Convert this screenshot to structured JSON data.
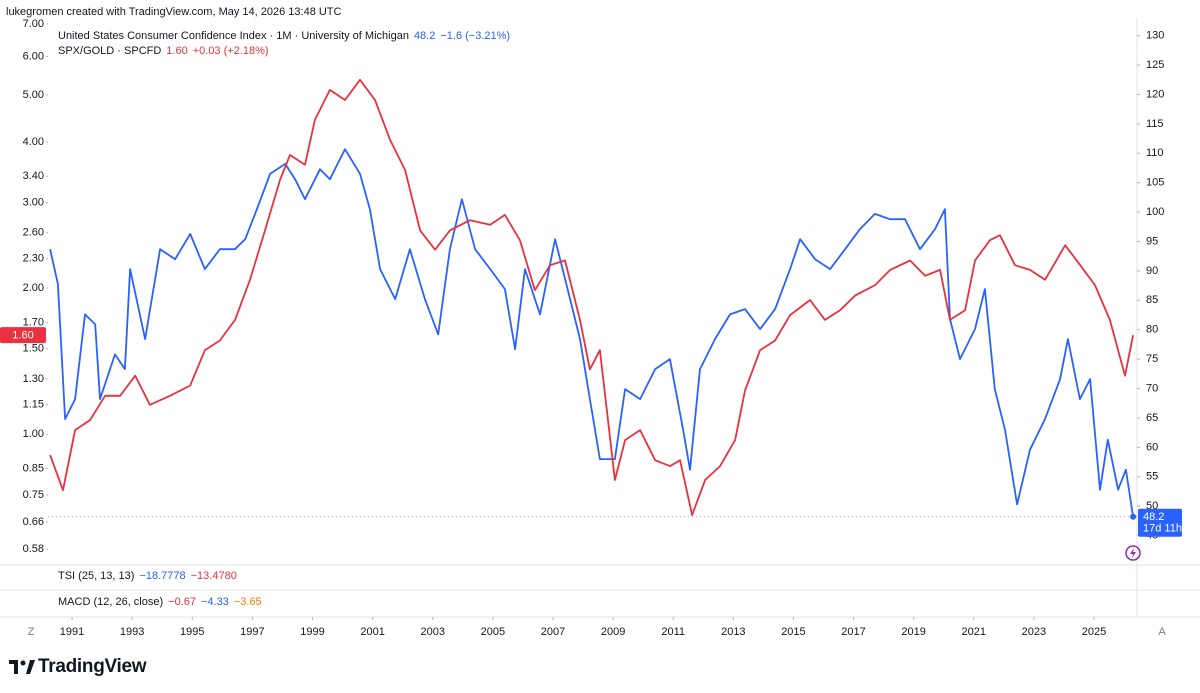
{
  "header": "lukegromen created with TradingView.com, May 14, 2026 13:48 UTC",
  "chart_data": {
    "type": "line",
    "log_scale_y": true,
    "grid": false,
    "series": [
      {
        "name": "United States Consumer Confidence Index · 1M · University of Michigan",
        "color": "#2962ff",
        "axis": "y2",
        "last_label": "48.2",
        "change": "−1.6 (−3.21%)",
        "countdown": "17d 11h",
        "x": [
          1990.27,
          1990.53,
          1990.77,
          1991.1,
          1991.43,
          1991.77,
          1991.93,
          1992.43,
          1992.76,
          1992.93,
          1993.43,
          1993.93,
          1994.43,
          1994.93,
          1995.42,
          1995.92,
          1996.42,
          1996.76,
          1997.09,
          1997.59,
          1998.09,
          1998.42,
          1998.75,
          1999.25,
          1999.58,
          2000.08,
          2000.58,
          2000.91,
          2001.25,
          2001.75,
          2002.24,
          2002.74,
          2003.18,
          2003.57,
          2003.97,
          2004.41,
          2004.91,
          2005.4,
          2005.74,
          2006.07,
          2006.57,
          2007.07,
          2007.57,
          2007.9,
          2008.23,
          2008.56,
          2009.06,
          2009.4,
          2009.9,
          2010.4,
          2010.89,
          2011.33,
          2011.56,
          2011.89,
          2012.39,
          2012.89,
          2013.39,
          2013.89,
          2014.39,
          2014.89,
          2015.22,
          2015.72,
          2016.22,
          2016.72,
          2017.21,
          2017.71,
          2018.21,
          2018.71,
          2019.21,
          2019.71,
          2020.04,
          2020.21,
          2020.54,
          2021.04,
          2021.37,
          2021.7,
          2022.04,
          2022.44,
          2022.87,
          2023.37,
          2023.87,
          2024.13,
          2024.53,
          2024.87,
          2025.2,
          2025.46,
          2025.8,
          2026.06,
          2026.3
        ],
        "values": [
          93.7,
          87.8,
          64.8,
          68.2,
          82.6,
          80.9,
          68.2,
          75.8,
          73.3,
          90.3,
          78.4,
          93.7,
          92.0,
          96.3,
          90.3,
          93.7,
          93.7,
          95.4,
          99.7,
          106.5,
          108.2,
          105.6,
          102.2,
          107.3,
          105.6,
          110.7,
          106.5,
          100.5,
          90.3,
          85.2,
          93.7,
          85.2,
          79.2,
          93.7,
          102.2,
          93.7,
          90.3,
          86.9,
          76.7,
          90.3,
          82.6,
          95.4,
          85.2,
          78.4,
          68.2,
          58.0,
          58.0,
          69.9,
          68.2,
          73.3,
          75.0,
          63.0,
          56.2,
          73.3,
          78.4,
          82.6,
          83.5,
          80.1,
          83.5,
          90.3,
          95.4,
          92.0,
          90.3,
          93.7,
          97.1,
          99.7,
          98.8,
          98.8,
          93.7,
          97.1,
          100.5,
          81.8,
          75.0,
          80.1,
          86.9,
          69.9,
          63.0,
          50.3,
          59.6,
          64.8,
          71.6,
          78.4,
          68.2,
          71.6,
          52.8,
          61.3,
          52.8,
          56.2,
          48.2
        ]
      },
      {
        "name": "SPX/GOLD · SPCFD",
        "color": "#e8323f",
        "last_label": "1.60",
        "change": "+0.03 (+2.18%)",
        "x": [
          1990.27,
          1990.7,
          1991.1,
          1991.6,
          1992.1,
          1992.6,
          1993.1,
          1993.59,
          1994.26,
          1994.93,
          1995.42,
          1995.92,
          1996.42,
          1996.92,
          1997.42,
          1997.92,
          1998.25,
          1998.75,
          1999.08,
          1999.58,
          2000.08,
          2000.58,
          2001.08,
          2001.58,
          2002.08,
          2002.58,
          2003.08,
          2003.57,
          2004.24,
          2004.91,
          2005.4,
          2005.9,
          2006.4,
          2006.9,
          2007.4,
          2007.9,
          2008.23,
          2008.56,
          2009.06,
          2009.4,
          2009.9,
          2010.4,
          2010.89,
          2011.23,
          2011.63,
          2012.06,
          2012.56,
          2013.06,
          2013.39,
          2013.89,
          2014.39,
          2014.89,
          2015.55,
          2016.05,
          2016.55,
          2017.05,
          2017.72,
          2018.22,
          2018.88,
          2019.38,
          2019.88,
          2020.21,
          2020.71,
          2021.04,
          2021.54,
          2021.87,
          2022.37,
          2022.87,
          2023.37,
          2024.04,
          2024.54,
          2025.03,
          2025.53,
          2026.03,
          2026.3
        ],
        "values": [
          0.906,
          0.767,
          1.02,
          1.07,
          1.2,
          1.2,
          1.32,
          1.15,
          1.2,
          1.26,
          1.49,
          1.56,
          1.72,
          2.08,
          2.63,
          3.34,
          3.76,
          3.59,
          4.44,
          5.12,
          4.88,
          5.37,
          4.88,
          4.04,
          3.5,
          2.63,
          2.4,
          2.63,
          2.76,
          2.7,
          2.83,
          2.51,
          1.98,
          2.23,
          2.28,
          1.72,
          1.36,
          1.49,
          0.805,
          0.973,
          1.02,
          0.884,
          0.86,
          0.884,
          0.682,
          0.805,
          0.86,
          0.973,
          1.23,
          1.49,
          1.56,
          1.76,
          1.89,
          1.72,
          1.8,
          1.93,
          2.03,
          2.18,
          2.28,
          2.12,
          2.18,
          1.72,
          1.8,
          2.28,
          2.51,
          2.57,
          2.23,
          2.18,
          2.08,
          2.45,
          2.23,
          2.03,
          1.72,
          1.32,
          1.6
        ]
      }
    ],
    "xlim": [
      1990.2,
      2026.43
    ],
    "xticks": [
      1991,
      1993,
      1995,
      1997,
      1999,
      2001,
      2003,
      2005,
      2007,
      2009,
      2011,
      2013,
      2015,
      2017,
      2019,
      2021,
      2023,
      2025
    ],
    "x_edge_labels": [
      "Z",
      "A"
    ],
    "ylim": [
      0.538,
      7.2
    ],
    "yticks": [
      {
        "value": 7,
        "label": "7.00"
      },
      {
        "value": 6,
        "label": "6.00"
      },
      {
        "value": 5,
        "label": "5.00"
      },
      {
        "value": 4,
        "label": "4.00"
      },
      {
        "value": 3.4,
        "label": "3.40"
      },
      {
        "value": 3,
        "label": "3.00"
      },
      {
        "value": 2.6,
        "label": "2.60"
      },
      {
        "value": 2.3,
        "label": "2.30"
      },
      {
        "value": 2,
        "label": "2.00"
      },
      {
        "value": 1.7,
        "label": "1.70"
      },
      {
        "value": 1.5,
        "label": "1.50"
      },
      {
        "value": 1.3,
        "label": "1.30"
      },
      1.15,
      {
        "value": 1,
        "label": "1.00"
      },
      0.85,
      0.75,
      0.66,
      0.58
    ],
    "y2lim": [
      40,
      133
    ],
    "y2ticks": [
      45,
      50,
      55,
      60,
      65,
      70,
      75,
      80,
      85,
      90,
      95,
      100,
      105,
      110,
      115,
      120,
      125,
      130
    ]
  },
  "indicators": [
    {
      "name": "TSI (25, 13, 13)",
      "readings": [
        {
          "text": "−18.7778",
          "color": "#2962ff"
        },
        {
          "text": "−13.4780",
          "color": "#e8323f"
        }
      ]
    },
    {
      "name": "MACD (12, 26, close)",
      "readings": [
        {
          "text": "−0.67",
          "color": "#e8323f"
        },
        {
          "text": "−4.33",
          "color": "#2962ff"
        },
        {
          "text": "−3.65",
          "color": "#f57c00"
        }
      ]
    }
  ],
  "brand": "TradingView"
}
